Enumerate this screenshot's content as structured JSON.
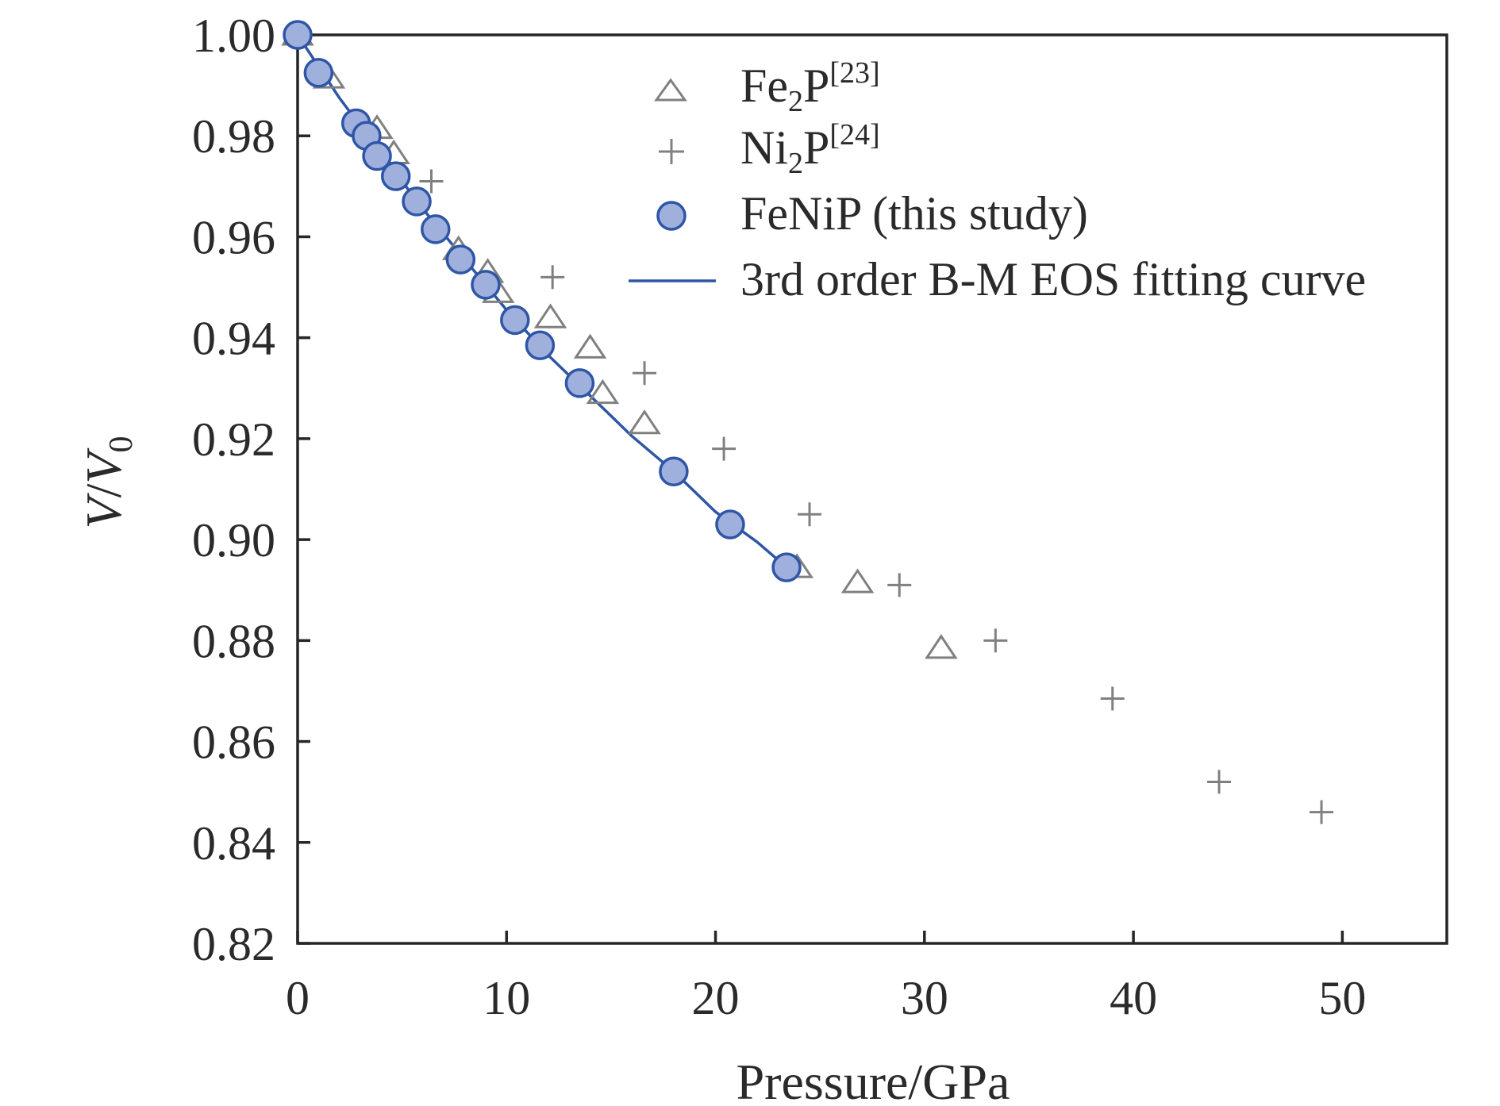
{
  "chart_data": {
    "type": "scatter",
    "xlabel": "Pressure/GPa",
    "ylabel": {
      "v": "V",
      "sep": "/",
      "v0": "V",
      "sub": "0"
    },
    "xlim": [
      0,
      55
    ],
    "ylim": [
      0.82,
      1.0
    ],
    "x_ticks": [
      0,
      10,
      20,
      30,
      40,
      50
    ],
    "x_tick_labels": [
      "0",
      "10",
      "20",
      "30",
      "40",
      "50"
    ],
    "y_ticks": [
      0.82,
      0.84,
      0.86,
      0.88,
      0.9,
      0.92,
      0.94,
      0.96,
      0.98,
      1.0
    ],
    "y_tick_labels": [
      "0.82",
      "0.84",
      "0.86",
      "0.88",
      "0.90",
      "0.92",
      "0.94",
      "0.96",
      "0.98",
      "1.00"
    ],
    "grid": false,
    "legend_position": "top-right",
    "series": [
      {
        "name": "Fe2P[23]",
        "legend": {
          "base": "Fe",
          "sub": "2",
          "rest": "P",
          "sup": "[23]"
        },
        "marker": "triangle-open",
        "color": "#808080",
        "points": [
          [
            0.0,
            1.0
          ],
          [
            1.5,
            0.9915
          ],
          [
            3.8,
            0.9815
          ],
          [
            4.6,
            0.9765
          ],
          [
            7.7,
            0.9575
          ],
          [
            9.1,
            0.953
          ],
          [
            9.6,
            0.949
          ],
          [
            12.1,
            0.944
          ],
          [
            14.0,
            0.938
          ],
          [
            14.6,
            0.929
          ],
          [
            16.6,
            0.923
          ],
          [
            23.9,
            0.8945
          ],
          [
            26.8,
            0.8915
          ],
          [
            30.8,
            0.8785
          ]
        ]
      },
      {
        "name": "Ni2P[24]",
        "legend": {
          "base": "Ni",
          "sub": "2",
          "rest": "P",
          "sup": "[24]"
        },
        "marker": "plus",
        "color": "#808080",
        "points": [
          [
            6.4,
            0.971
          ],
          [
            12.2,
            0.952
          ],
          [
            16.6,
            0.933
          ],
          [
            20.4,
            0.918
          ],
          [
            24.5,
            0.905
          ],
          [
            28.8,
            0.891
          ],
          [
            33.4,
            0.88
          ],
          [
            39.0,
            0.8685
          ],
          [
            44.1,
            0.852
          ],
          [
            49.0,
            0.846
          ]
        ]
      },
      {
        "name": "FeNiP (this study)",
        "marker": "circle-filled",
        "color": "#2f56a6",
        "fill": "#9fb0dc",
        "points": [
          [
            0.0,
            1.0
          ],
          [
            1.0,
            0.9925
          ],
          [
            2.8,
            0.9825
          ],
          [
            3.3,
            0.98
          ],
          [
            3.8,
            0.976
          ],
          [
            4.7,
            0.972
          ],
          [
            5.7,
            0.967
          ],
          [
            6.6,
            0.9615
          ],
          [
            7.8,
            0.9555
          ],
          [
            9.0,
            0.9505
          ],
          [
            10.4,
            0.9435
          ],
          [
            11.6,
            0.9385
          ],
          [
            13.5,
            0.931
          ],
          [
            18.0,
            0.9135
          ],
          [
            20.7,
            0.903
          ],
          [
            23.4,
            0.8945
          ]
        ]
      },
      {
        "name": "3rd order B-M EOS fitting curve",
        "marker": "line",
        "color": "#2f56a6",
        "points": [
          [
            0.0,
            1.0
          ],
          [
            2.0,
            0.9875
          ],
          [
            4.0,
            0.9765
          ],
          [
            6.0,
            0.9655
          ],
          [
            8.0,
            0.9555
          ],
          [
            10.0,
            0.9455
          ],
          [
            12.0,
            0.9365
          ],
          [
            14.0,
            0.9285
          ],
          [
            16.0,
            0.9205
          ],
          [
            18.0,
            0.9135
          ],
          [
            20.0,
            0.9055
          ],
          [
            22.0,
            0.8995
          ],
          [
            23.4,
            0.8945
          ]
        ]
      }
    ]
  }
}
